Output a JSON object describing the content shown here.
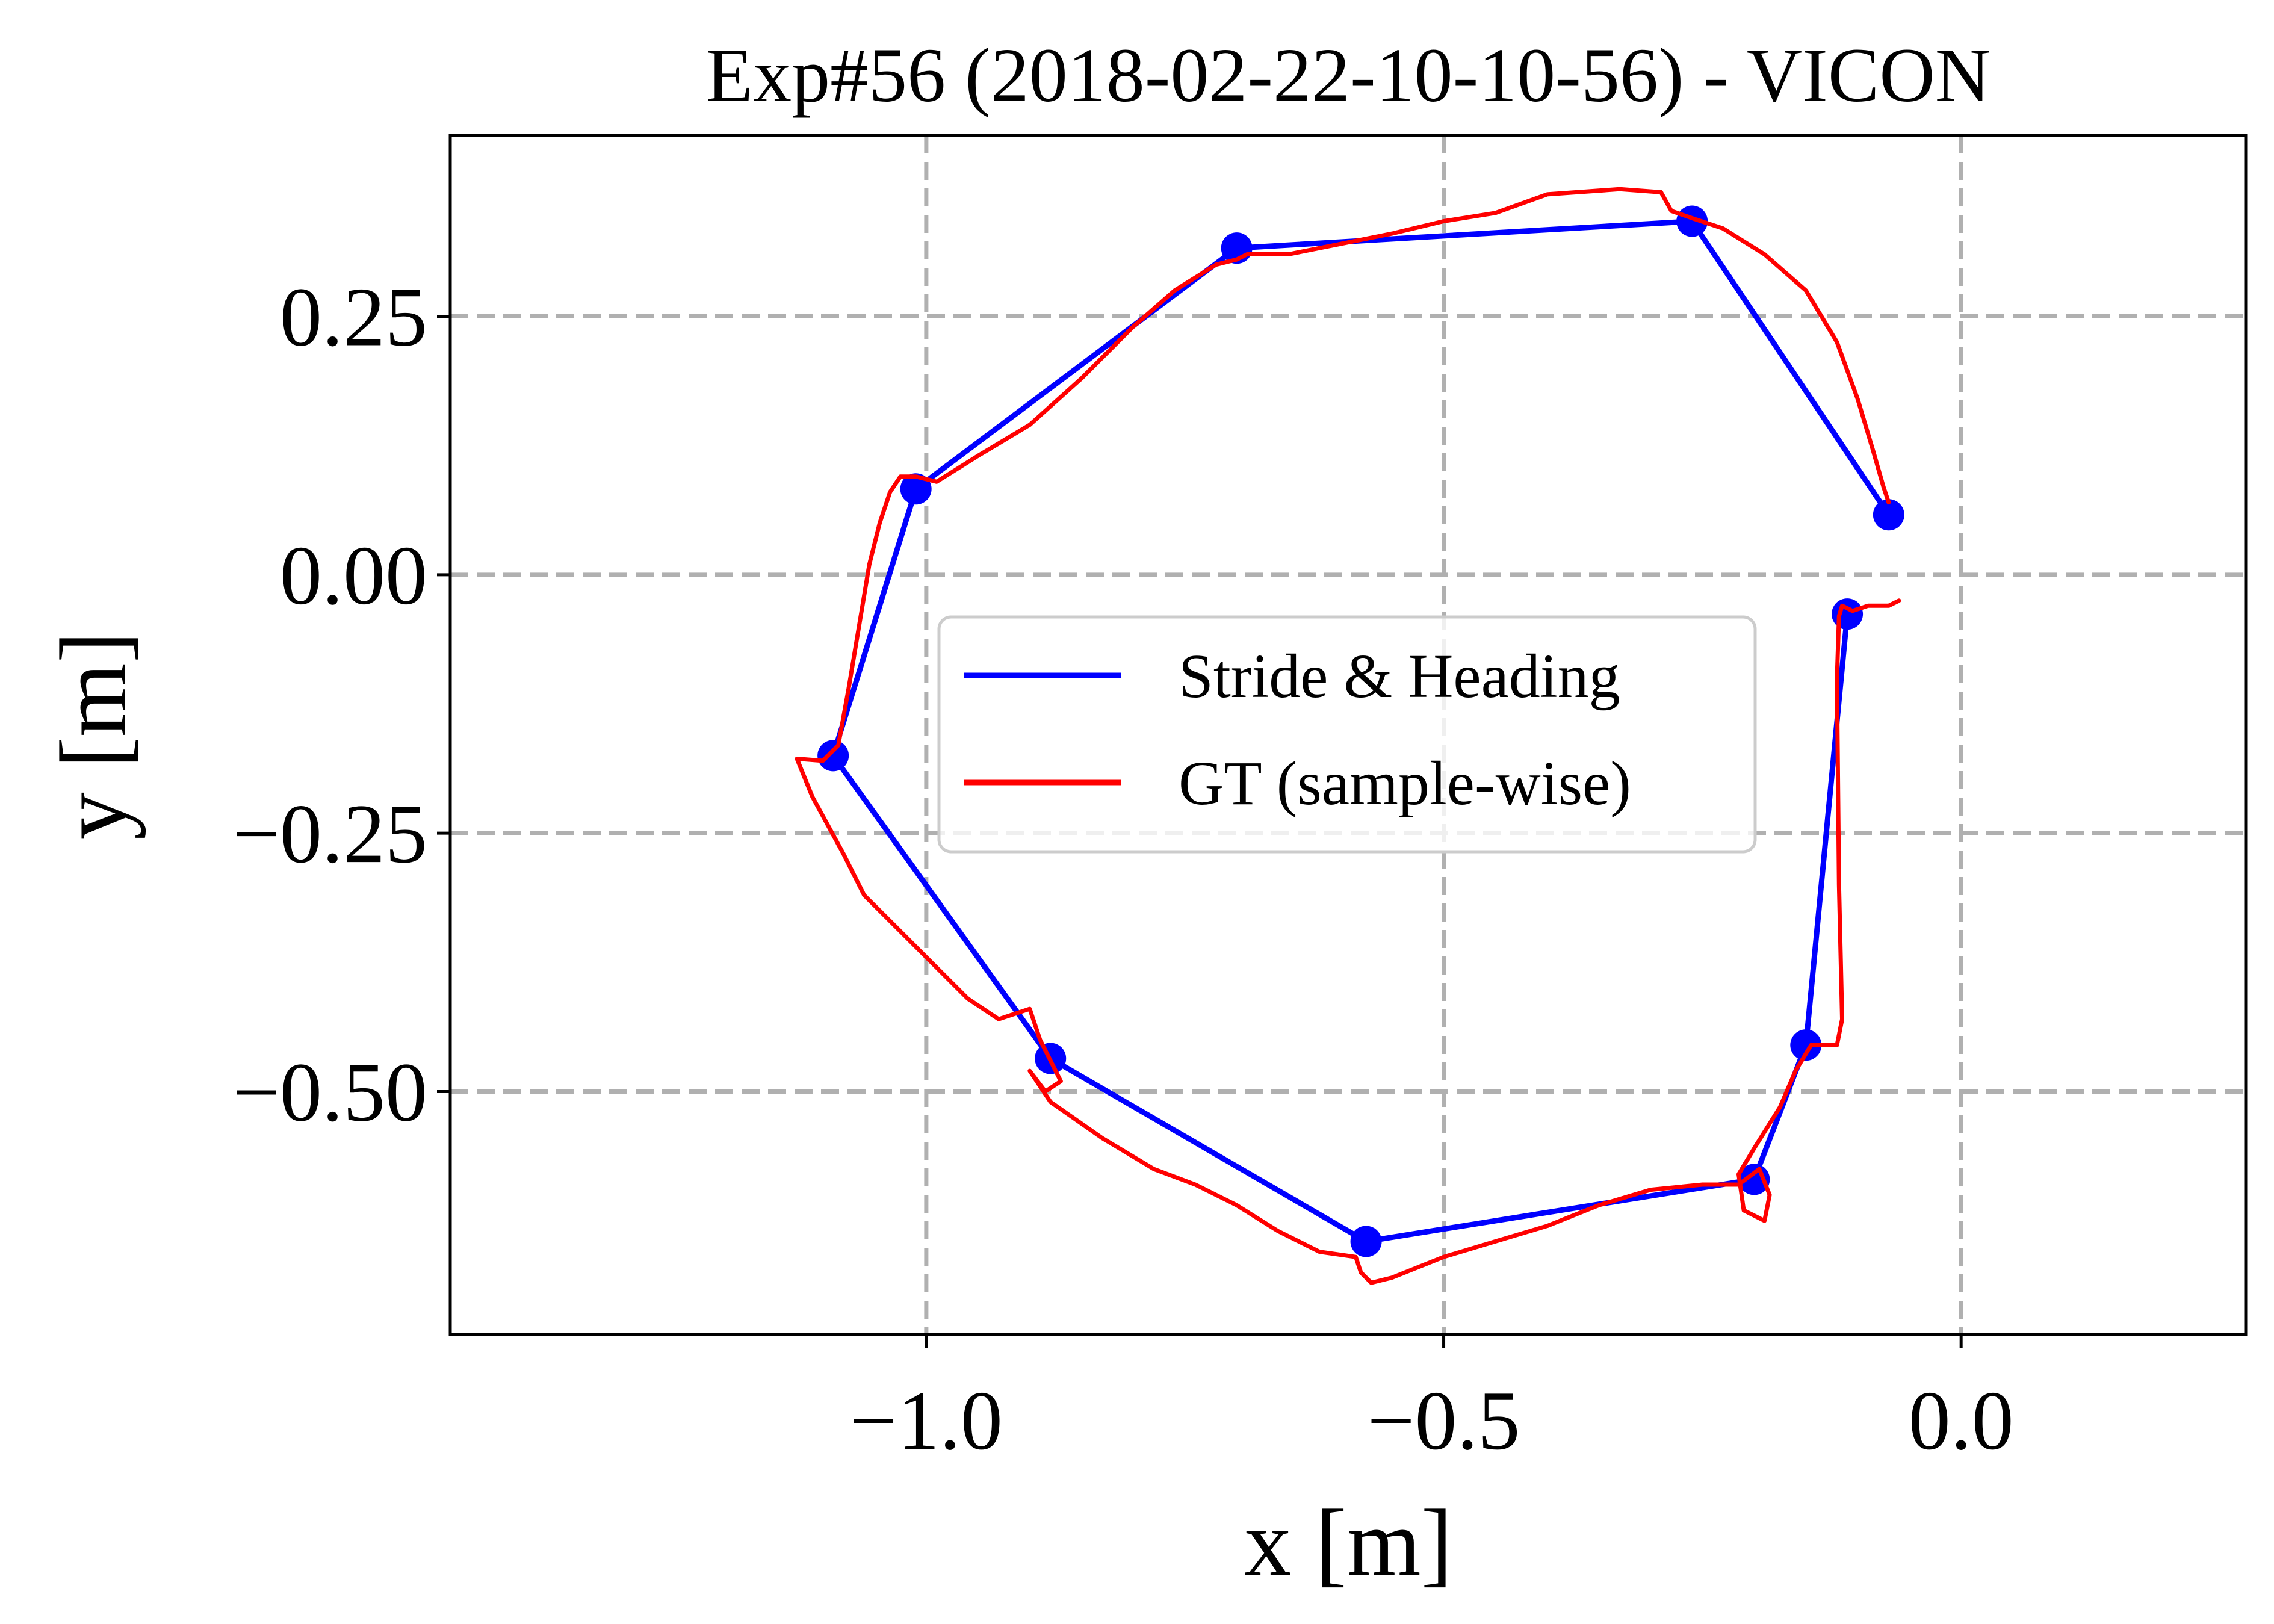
{
  "chart_data": {
    "type": "line",
    "title": "Exp#56 (2018-02-22-10-10-56) - VICON",
    "xlabel": "x [m]",
    "ylabel": "y [m]",
    "xlim": [
      -1.46,
      0.275
    ],
    "ylim": [
      -0.735,
      0.425
    ],
    "xticks": [
      -1.0,
      -0.5,
      0.0
    ],
    "xtick_labels": [
      "−1.0",
      "−0.5",
      "0.0"
    ],
    "yticks": [
      0.25,
      0.0,
      -0.25,
      -0.5
    ],
    "ytick_labels": [
      "0.25",
      "0.00",
      "−0.25",
      "−0.50"
    ],
    "grid": true,
    "legend_position": "center",
    "series": [
      {
        "name": "Stride & Heading",
        "color": "#0000ff",
        "marker": "circle",
        "x": [
          -0.07,
          -0.26,
          -0.7,
          -1.01,
          -1.09,
          -0.88,
          -0.575,
          -0.2,
          -0.15,
          -0.11
        ],
        "y": [
          0.058,
          0.342,
          0.316,
          0.083,
          -0.175,
          -0.468,
          -0.645,
          -0.585,
          -0.455,
          -0.038
        ]
      },
      {
        "name": "GT (sample-wise)",
        "color": "#ff0000",
        "marker": "none",
        "x": [
          -0.07,
          -0.075,
          -0.085,
          -0.1,
          -0.12,
          -0.15,
          -0.19,
          -0.23,
          -0.26,
          -0.28,
          -0.29,
          -0.33,
          -0.4,
          -0.45,
          -0.5,
          -0.55,
          -0.6,
          -0.65,
          -0.69,
          -0.7,
          -0.72,
          -0.76,
          -0.8,
          -0.85,
          -0.9,
          -0.95,
          -0.99,
          -1.01,
          -1.025,
          -1.035,
          -1.045,
          -1.055,
          -1.065,
          -1.075,
          -1.085,
          -1.1,
          -1.125,
          -1.11,
          -1.08,
          -1.06,
          -1.04,
          -1.0,
          -0.96,
          -0.93,
          -0.9,
          -0.89,
          -0.87,
          -0.885,
          -0.9,
          -0.88,
          -0.83,
          -0.78,
          -0.74,
          -0.7,
          -0.66,
          -0.62,
          -0.585,
          -0.58,
          -0.575,
          -0.57,
          -0.55,
          -0.5,
          -0.45,
          -0.4,
          -0.35,
          -0.3,
          -0.25,
          -0.215,
          -0.195,
          -0.185,
          -0.19,
          -0.21,
          -0.215,
          -0.2,
          -0.175,
          -0.16,
          -0.145,
          -0.12,
          -0.115,
          -0.118,
          -0.12,
          -0.118,
          -0.115,
          -0.105,
          -0.09,
          -0.07,
          -0.06
        ],
        "y": [
          0.07,
          0.085,
          0.12,
          0.17,
          0.225,
          0.275,
          0.31,
          0.335,
          0.345,
          0.352,
          0.37,
          0.373,
          0.368,
          0.35,
          0.342,
          0.33,
          0.32,
          0.31,
          0.31,
          0.305,
          0.3,
          0.275,
          0.24,
          0.19,
          0.145,
          0.115,
          0.09,
          0.095,
          0.095,
          0.08,
          0.05,
          0.01,
          -0.05,
          -0.11,
          -0.165,
          -0.18,
          -0.178,
          -0.215,
          -0.27,
          -0.31,
          -0.33,
          -0.37,
          -0.41,
          -0.43,
          -0.42,
          -0.45,
          -0.49,
          -0.5,
          -0.48,
          -0.51,
          -0.545,
          -0.575,
          -0.59,
          -0.61,
          -0.635,
          -0.655,
          -0.66,
          -0.675,
          -0.68,
          -0.685,
          -0.68,
          -0.66,
          -0.645,
          -0.63,
          -0.61,
          -0.595,
          -0.59,
          -0.59,
          -0.575,
          -0.6,
          -0.625,
          -0.615,
          -0.58,
          -0.555,
          -0.515,
          -0.48,
          -0.455,
          -0.455,
          -0.43,
          -0.3,
          -0.1,
          -0.04,
          -0.03,
          -0.035,
          -0.03,
          -0.03,
          -0.025
        ]
      }
    ]
  }
}
